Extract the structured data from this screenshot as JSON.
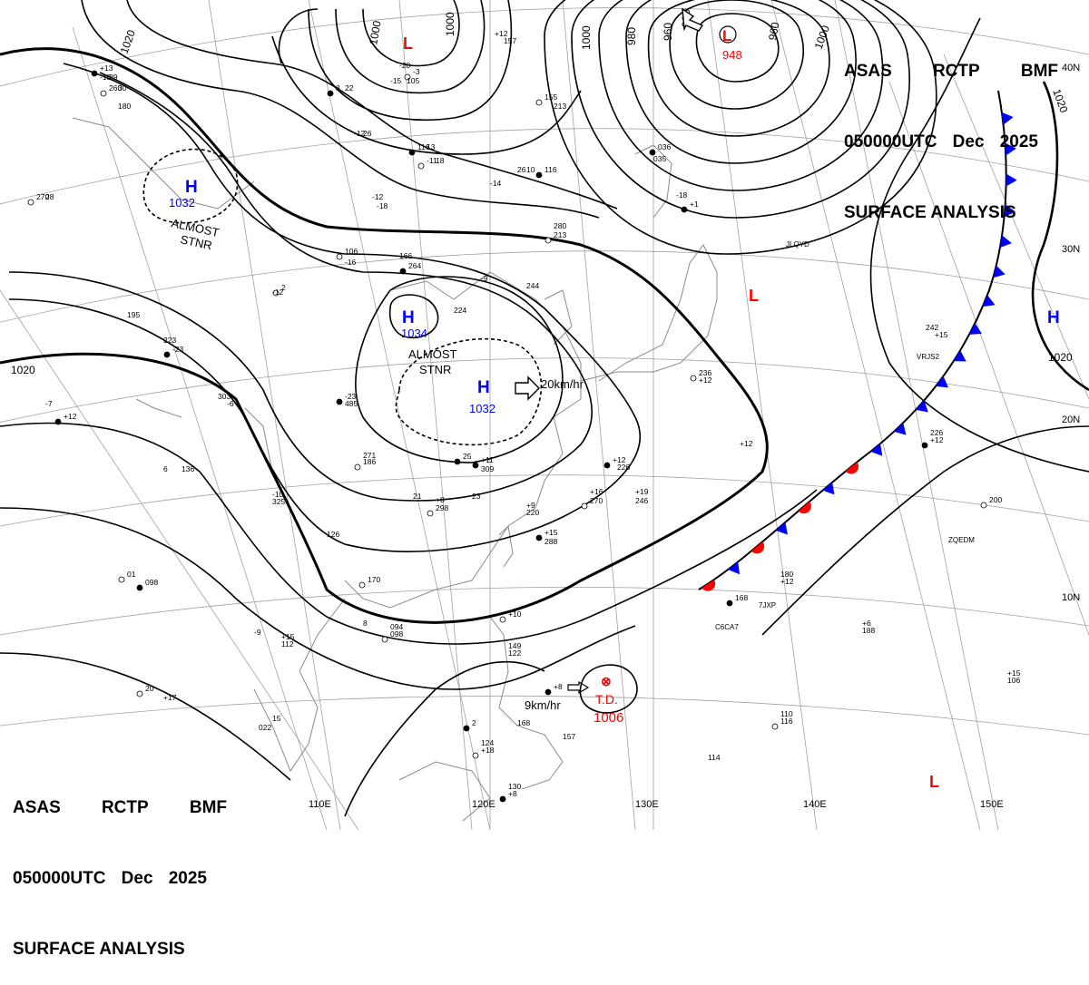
{
  "header_top_right": {
    "line1": [
      "ASAS",
      "RCTP",
      "BMF"
    ],
    "line2": [
      "050000UTC",
      "Dec",
      "2025"
    ],
    "line3": "SURFACE ANALYSIS"
  },
  "header_bottom_left": {
    "line1": [
      "ASAS",
      "RCTP",
      "BMF"
    ],
    "line2": [
      "050000UTC",
      "Dec",
      "2025"
    ],
    "line3": "SURFACE ANALYSIS"
  },
  "longitude_labels": [
    "110E",
    "120E",
    "130E",
    "140E",
    "150E"
  ],
  "latitude_labels": [
    "40N",
    "30N",
    "20N",
    "10N"
  ],
  "isobar_labels": [
    "1020",
    "1000",
    "1000",
    "1000",
    "980",
    "960",
    "960",
    "960",
    "1000",
    "1020",
    "1020",
    "1020"
  ],
  "pressure_centers": [
    {
      "symbol": "H",
      "value": "1032",
      "note": [
        "ALMOST",
        "STNR"
      ],
      "color": "#0000ff"
    },
    {
      "symbol": "H",
      "value": "1034",
      "note": [
        "ALMOST",
        "STNR"
      ],
      "color": "#0000ff"
    },
    {
      "symbol": "H",
      "value": "1032",
      "note": [],
      "color": "#0000ff"
    },
    {
      "symbol": "H",
      "value": "",
      "note": [],
      "color": "#0000ff"
    },
    {
      "symbol": "L",
      "value": "",
      "note": [],
      "color": "#ff0000"
    },
    {
      "symbol": "L",
      "value": "948",
      "note": [],
      "color": "#ff0000"
    },
    {
      "symbol": "L",
      "value": "",
      "note": [],
      "color": "#ff0000"
    },
    {
      "symbol": "L",
      "value": "",
      "note": [],
      "color": "#ff0000"
    }
  ],
  "tropical_depression": {
    "label": "T.D.",
    "pressure": "1006",
    "motion": "9km/hr",
    "color": "#ff0000"
  },
  "motion_labels": [
    "20km/hr"
  ],
  "ship_ids": [
    "JLQYD",
    "VRJS2",
    "ZQEDM",
    "C6CA7",
    "7JXP"
  ],
  "station_obs": [
    "270",
    "-10",
    "260",
    "8",
    "-12",
    "116",
    "-11",
    "26",
    "-14",
    "116",
    "-12",
    "-18",
    "106",
    "-16",
    "166",
    "264",
    "-9",
    "224",
    "2",
    "-12",
    "223",
    "-23",
    "244",
    "280",
    "213",
    "303",
    "-6",
    "-23",
    "485",
    "271",
    "186",
    "-10",
    "325",
    "+11",
    "309",
    "+8",
    "298",
    "+9",
    "220",
    "+15",
    "288",
    "+16",
    "270",
    "+19",
    "246",
    "+12",
    "226",
    "+12",
    "236",
    "+12",
    "226",
    "+12",
    "242",
    "+15",
    "200",
    "180",
    "+12",
    "168",
    "+6",
    "188",
    "+10",
    "149",
    "122",
    "+8",
    "168",
    "124",
    "+18",
    "157",
    "130",
    "+8",
    "114",
    "110",
    "116",
    "+15",
    "106",
    "098",
    "+17",
    "094",
    "098",
    "+15",
    "112",
    "+12",
    "136",
    "126",
    "170",
    "+12",
    "157",
    "+13",
    "195",
    "180",
    "155",
    "213",
    "035",
    "+1",
    "-18",
    "-20",
    "-3",
    "105",
    "-15",
    "036",
    "-7",
    "6",
    "01",
    "-9",
    "8",
    "2",
    "022",
    "15",
    "20",
    "21",
    "23",
    "25",
    "28",
    "29",
    "30",
    "22",
    "26",
    "13",
    "18",
    "10"
  ],
  "colors": {
    "isobar": "#000000",
    "high_symbol": "#0000ff",
    "low_symbol": "#ff0000",
    "cold_front": "#0000ff",
    "warm_front": "#ff0000",
    "grid": "#9a9a9a",
    "coast": "#8a8a8a"
  }
}
